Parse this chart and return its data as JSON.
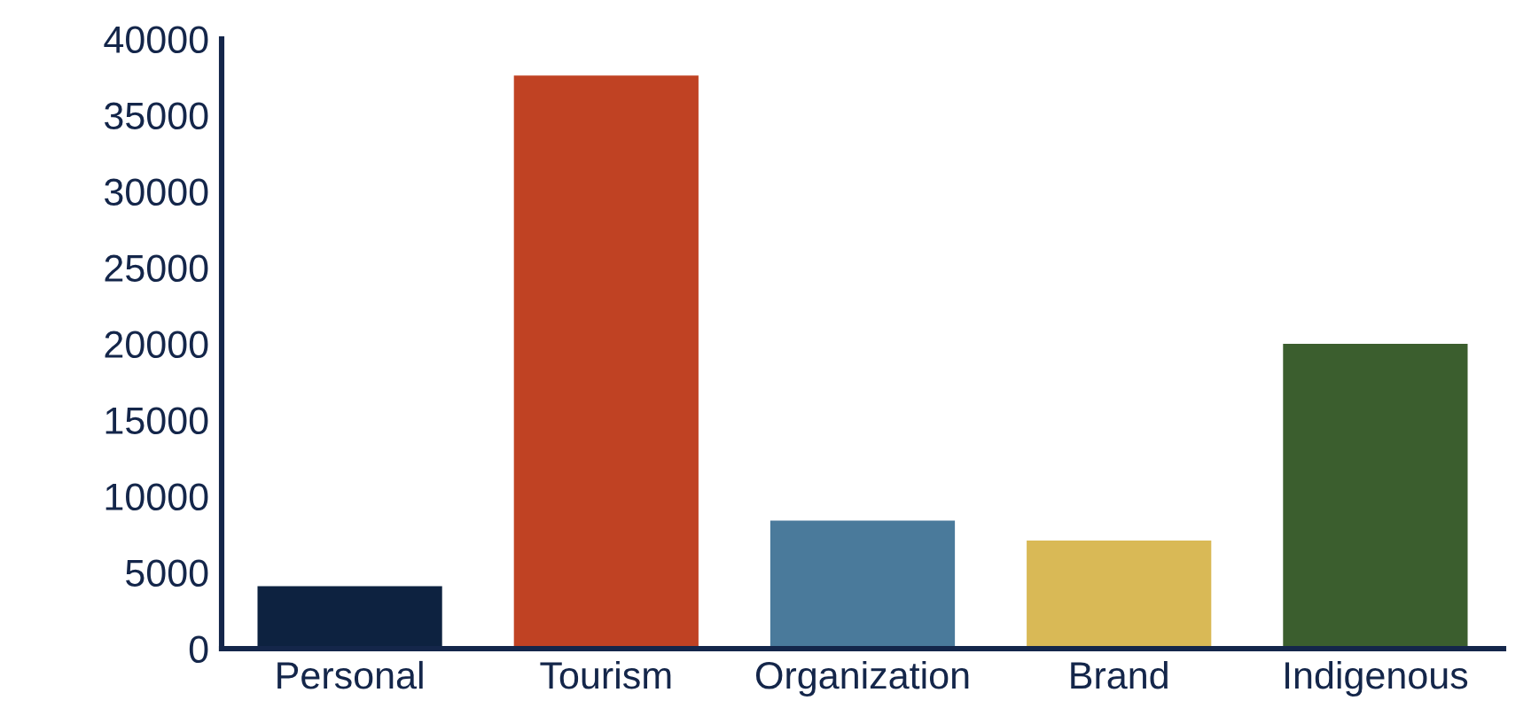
{
  "chart_data": {
    "type": "bar",
    "categories": [
      "Personal",
      "Tourism",
      "Organization",
      "Brand",
      "Indigenous"
    ],
    "values": [
      4100,
      37600,
      8400,
      7100,
      20000
    ],
    "colors": [
      "#0d2240",
      "#c04223",
      "#4a7a9b",
      "#d9b956",
      "#3b5e2e"
    ],
    "ylim": [
      0,
      40000
    ],
    "yticks": [
      0,
      5000,
      10000,
      15000,
      20000,
      25000,
      30000,
      35000,
      40000
    ],
    "grid": false,
    "legend": false
  }
}
